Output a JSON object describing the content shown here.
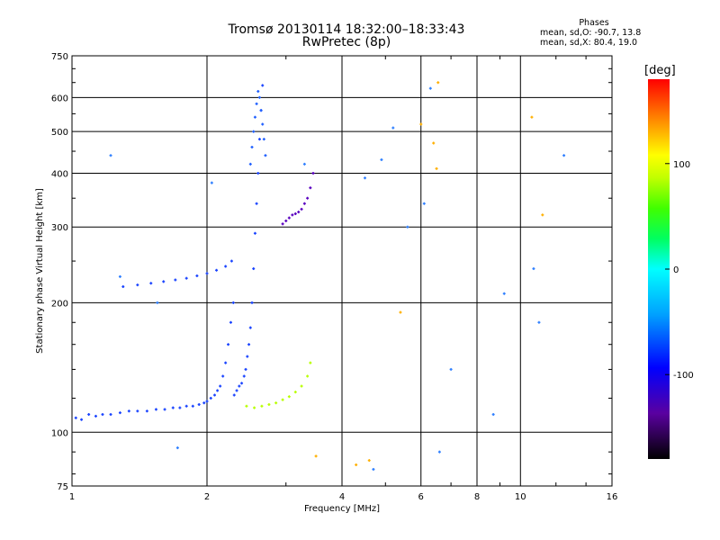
{
  "header": {
    "title_line1": "Tromsø 20130114 18:32:00–18:33:43",
    "title_line2": "RwPretec (8p)"
  },
  "phase_stats": {
    "heading": "Phases",
    "line1": "mean, sd,O: -90.7, 13.8",
    "line2": "mean, sd,X: 80.4, 19.0"
  },
  "colorbar": {
    "label": "[deg]",
    "ticks": [
      {
        "value": 100,
        "label": "100"
      },
      {
        "value": 0,
        "label": "0"
      },
      {
        "value": -100,
        "label": "-100"
      }
    ]
  },
  "chart_data": {
    "type": "scatter",
    "xlabel": "Frequency [MHz]",
    "ylabel": "Stationary phase Virtual Height [km]",
    "xscale": "log",
    "yscale": "log",
    "xlim": [
      1,
      16
    ],
    "ylim": [
      75,
      750
    ],
    "grid": true,
    "x_ticks": [
      1,
      2,
      4,
      6,
      8,
      10,
      16
    ],
    "x_tick_labels": [
      "1",
      "2",
      "4",
      "6",
      "8",
      "10",
      "16"
    ],
    "y_ticks": [
      75,
      100,
      200,
      300,
      400,
      500,
      600,
      750
    ],
    "y_tick_labels": [
      "75",
      "100",
      "200",
      "300",
      "400",
      "500",
      "600",
      "750"
    ],
    "series": [
      {
        "trace": "o_low",
        "color": "#1a44ff",
        "x": [
          1.02,
          1.05,
          1.09,
          1.13,
          1.17,
          1.22,
          1.28,
          1.34,
          1.4,
          1.47,
          1.54,
          1.61,
          1.68,
          1.74,
          1.8,
          1.86,
          1.92,
          1.97,
          2.0,
          2.04,
          2.08,
          2.11,
          2.14,
          2.17,
          2.2,
          2.23,
          2.26,
          2.29
        ],
        "y": [
          108,
          107,
          110,
          109,
          110,
          110,
          111,
          112,
          112,
          112,
          113,
          113,
          114,
          114,
          115,
          115,
          116,
          117,
          118,
          120,
          122,
          125,
          128,
          135,
          145,
          160,
          180,
          200
        ]
      },
      {
        "trace": "o_mid",
        "color": "#1a44ff",
        "x": [
          1.3,
          1.4,
          1.5,
          1.6,
          1.7,
          1.8,
          1.9,
          2.0,
          2.1,
          2.2,
          2.27
        ],
        "y": [
          218,
          220,
          222,
          224,
          226,
          228,
          231,
          234,
          238,
          243,
          250
        ]
      },
      {
        "trace": "o_upper",
        "color": "#1a44ff",
        "x": [
          2.3,
          2.33,
          2.36,
          2.39,
          2.42,
          2.44,
          2.46,
          2.48,
          2.5,
          2.52,
          2.54,
          2.56,
          2.58,
          2.6,
          2.62,
          2.64,
          2.66
        ],
        "y": [
          122,
          125,
          128,
          130,
          135,
          140,
          150,
          160,
          175,
          200,
          240,
          290,
          340,
          400,
          480,
          560,
          640
        ]
      },
      {
        "trace": "o_f",
        "color": "#2060ff",
        "x": [
          2.5,
          2.52,
          2.54,
          2.56,
          2.58,
          2.6,
          2.62,
          2.64,
          2.66,
          2.68,
          2.7
        ],
        "y": [
          420,
          460,
          500,
          540,
          580,
          620,
          600,
          560,
          520,
          480,
          440
        ]
      },
      {
        "trace": "x_low",
        "color": "#b8ff00",
        "x": [
          2.45,
          2.55,
          2.65,
          2.75,
          2.85,
          2.95,
          3.05,
          3.15,
          3.25,
          3.35,
          3.4
        ],
        "y": [
          115,
          114,
          115,
          116,
          117,
          119,
          121,
          124,
          128,
          135,
          145
        ]
      },
      {
        "trace": "x_upper",
        "color": "#5a00c0",
        "x": [
          2.95,
          3.0,
          3.05,
          3.1,
          3.15,
          3.2,
          3.25,
          3.3,
          3.35,
          3.4,
          3.45
        ],
        "y": [
          305,
          310,
          315,
          320,
          322,
          325,
          330,
          340,
          350,
          370,
          400
        ]
      },
      {
        "trace": "scattered",
        "color": "#3080ff",
        "x": [
          1.22,
          1.28,
          1.55,
          1.72,
          2.05,
          3.3,
          4.5,
          4.7,
          4.9,
          5.2,
          5.6,
          6.1,
          6.3,
          6.6,
          7.0,
          8.7,
          9.2,
          10.7,
          11.0,
          12.5
        ],
        "y": [
          440,
          230,
          200,
          92,
          380,
          420,
          390,
          82,
          430,
          510,
          300,
          340,
          630,
          90,
          140,
          110,
          210,
          240,
          180,
          440
        ]
      },
      {
        "trace": "scattered_x",
        "color": "#ffb000",
        "x": [
          3.5,
          4.3,
          4.6,
          5.4,
          6.0,
          6.4,
          6.5,
          6.55,
          10.6,
          11.2
        ],
        "y": [
          88,
          84,
          86,
          190,
          520,
          470,
          410,
          650,
          540,
          320
        ]
      }
    ]
  }
}
